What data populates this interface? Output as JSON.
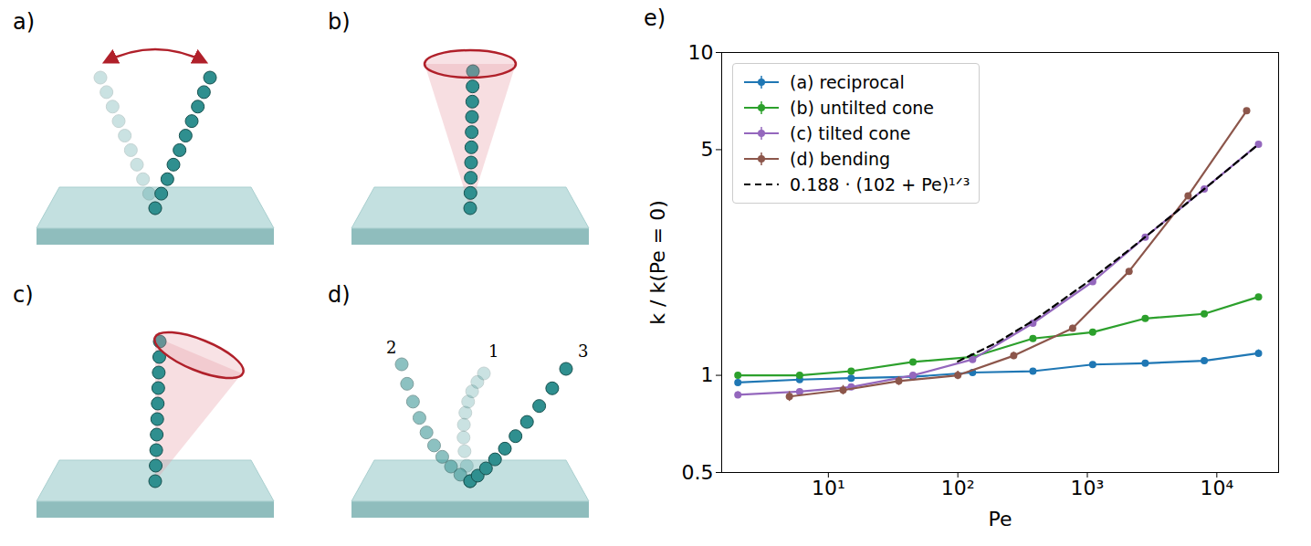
{
  "panels": [
    {
      "label": "a)"
    },
    {
      "label": "b)"
    },
    {
      "label": "c)"
    },
    {
      "label": "d)",
      "conformation_labels": [
        "1",
        "2",
        "3"
      ]
    }
  ],
  "chart_data": {
    "type": "line",
    "panel_label": "e)",
    "x_label": "Pe",
    "y_label": "k / k(Pe = 0)",
    "log": true,
    "grid": false,
    "legend": "upper left",
    "xlim": [
      1.5,
      30000
    ],
    "ylim": [
      0.5,
      10
    ],
    "xticks": [
      {
        "value": 10,
        "label": "10¹"
      },
      {
        "value": 100,
        "label": "10²"
      },
      {
        "value": 1000,
        "label": "10³"
      },
      {
        "value": 10000,
        "label": "10⁴"
      }
    ],
    "yticks": [
      0.5,
      1,
      5,
      10
    ],
    "series": [
      {
        "name": "(a) reciprocal",
        "color": "#1f77b4",
        "marker": "circle",
        "line_style": "solid",
        "x": [
          2,
          6,
          15,
          45,
          130,
          380,
          1100,
          2800,
          8000,
          21000
        ],
        "values": [
          0.95,
          0.97,
          0.98,
          0.99,
          1.02,
          1.03,
          1.08,
          1.09,
          1.11,
          1.17
        ],
        "errors": [
          0.02,
          0.02,
          0.02,
          0.02,
          0.02,
          0.02,
          0.02,
          0.02,
          0.02,
          0.03
        ]
      },
      {
        "name": "(b) untilted cone",
        "color": "#2ca02c",
        "marker": "circle",
        "line_style": "solid",
        "x": [
          2,
          6,
          15,
          45,
          130,
          380,
          1100,
          2800,
          8000,
          21000
        ],
        "values": [
          1.0,
          1.0,
          1.03,
          1.1,
          1.14,
          1.3,
          1.36,
          1.5,
          1.55,
          1.75
        ],
        "errors": [
          0.02,
          0.02,
          0.02,
          0.02,
          0.02,
          0.02,
          0.02,
          0.02,
          0.02,
          0.02
        ]
      },
      {
        "name": "(c) tilted cone",
        "color": "#9467bd",
        "marker": "circle",
        "line_style": "solid",
        "x": [
          2,
          6,
          15,
          45,
          130,
          380,
          1100,
          2800,
          8000,
          21000
        ],
        "values": [
          0.87,
          0.89,
          0.92,
          1.0,
          1.12,
          1.45,
          1.95,
          2.68,
          3.78,
          5.2
        ],
        "errors": [
          0.02,
          0.02,
          0.02,
          0.02,
          0.02,
          0.02,
          0.03,
          0.03,
          0.04,
          0.05
        ]
      },
      {
        "name": "(d) bending",
        "color": "#8c564b",
        "marker": "circle",
        "line_style": "solid",
        "x": [
          5,
          13,
          35,
          100,
          270,
          770,
          2100,
          6000,
          17000
        ],
        "values": [
          0.86,
          0.9,
          0.96,
          1.0,
          1.15,
          1.4,
          2.1,
          3.6,
          6.6
        ],
        "errors": [
          0.03,
          0.03,
          0.03,
          0.03,
          0.03,
          0.03,
          0.03,
          0.04,
          0.05
        ]
      },
      {
        "name": "0.188 · (102 + Pe)¹ᐟ³",
        "color": "#000000",
        "marker": "none",
        "line_style": "dashed",
        "x": [
          100,
          200,
          400,
          1000,
          2000,
          4000,
          10000,
          21000
        ],
        "values": [
          1.104,
          1.262,
          1.494,
          1.942,
          2.408,
          3.01,
          4.065,
          5.195
        ]
      }
    ]
  }
}
